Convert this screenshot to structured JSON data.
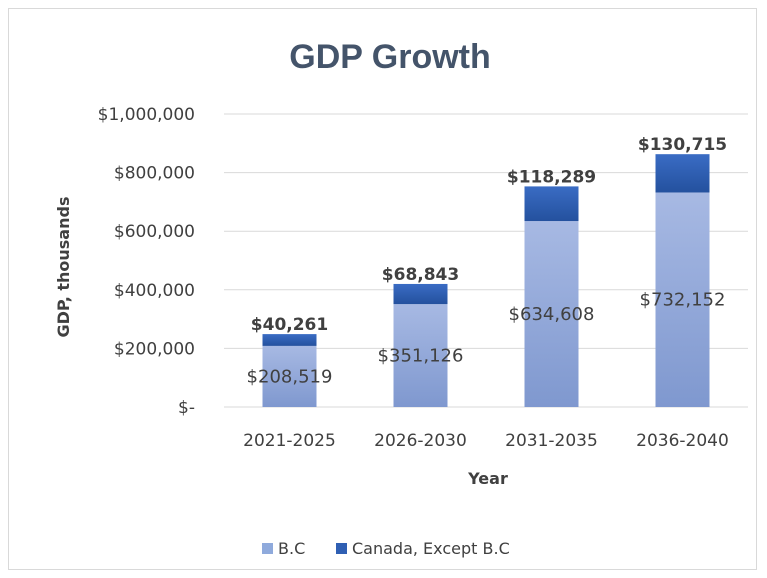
{
  "chart_data": {
    "type": "bar",
    "stacked": true,
    "title": "GDP Growth",
    "xlabel": "Year",
    "ylabel": "GDP, thousands",
    "categories": [
      "2021-2025",
      "2026-2030",
      "2031-2035",
      "2036-2040"
    ],
    "series": [
      {
        "name": "B.C",
        "values": [
          208519,
          351126,
          634608,
          732152
        ],
        "labels": [
          "$208,519",
          "$351,126",
          "$634,608",
          "$732,152"
        ],
        "color": "#8faadc"
      },
      {
        "name": "Canada, Except B.C",
        "values": [
          40261,
          68843,
          118289,
          130715
        ],
        "labels": [
          "$40,261",
          "$68,843",
          "$118,289",
          "$130,715"
        ],
        "color": "#2f5fb3"
      }
    ],
    "ylim": [
      0,
      1000000
    ],
    "yticks": [
      0,
      200000,
      400000,
      600000,
      800000,
      1000000
    ],
    "ytick_labels": [
      "$-",
      "$200,000",
      "$400,000",
      "$600,000",
      "$800,000",
      "$1,000,000"
    ],
    "grid": true,
    "legend_position": "bottom"
  }
}
